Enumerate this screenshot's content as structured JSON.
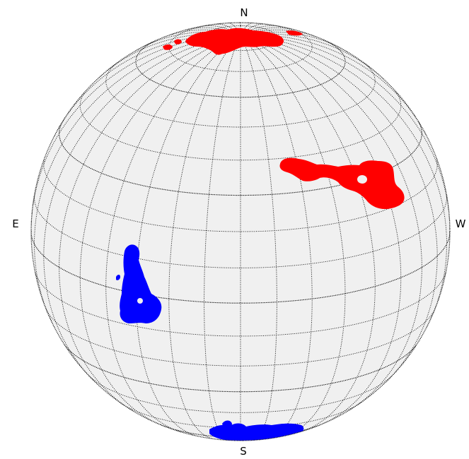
{
  "compass": {
    "north": "N",
    "south": "S",
    "east": "E",
    "west": "W"
  },
  "colors": {
    "sphere_fill": "#f0f0f0",
    "grid": "#000000",
    "red_region": "#ff0000",
    "blue_region": "#0000ff",
    "background": "#ffffff"
  },
  "regions": [
    {
      "name": "north-pole-red-patch",
      "color": "red"
    },
    {
      "name": "west-red-patch",
      "color": "red"
    },
    {
      "name": "east-blue-patch",
      "color": "blue"
    },
    {
      "name": "south-pole-blue-patch",
      "color": "blue"
    }
  ]
}
